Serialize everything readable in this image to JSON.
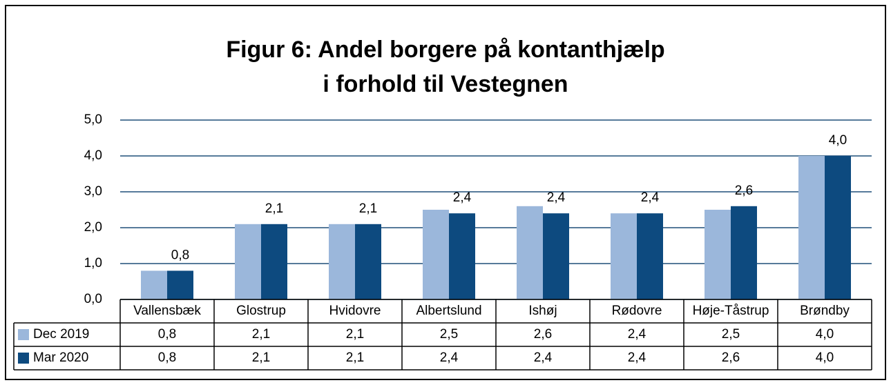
{
  "chart_data": {
    "type": "bar",
    "title": [
      "Figur 6: Andel borgere på kontanthjælp",
      "i forhold til Vestegnen"
    ],
    "categories": [
      "Vallensbæk",
      "Glostrup",
      "Hvidovre",
      "Albertslund",
      "Ishøj",
      "Rødovre",
      "Høje-Tåstrup",
      "Brøndby"
    ],
    "series": [
      {
        "name": "Dec 2019",
        "color": "#9bb7db",
        "values": [
          0.8,
          2.1,
          2.1,
          2.5,
          2.6,
          2.4,
          2.5,
          4.0
        ],
        "value_labels": [
          "0,8",
          "2,1",
          "2,1",
          "2,5",
          "2,6",
          "2,4",
          "2,5",
          "4,0"
        ]
      },
      {
        "name": "Mar 2020",
        "color": "#0d4a7f",
        "values": [
          0.8,
          2.1,
          2.1,
          2.4,
          2.4,
          2.4,
          2.6,
          4.0
        ],
        "value_labels": [
          "0,8",
          "2,1",
          "2,1",
          "2,4",
          "2,4",
          "2,4",
          "2,6",
          "4,0"
        ]
      }
    ],
    "ylim": [
      0,
      5
    ],
    "yticks": [
      {
        "value": 0,
        "label": "0,0"
      },
      {
        "value": 1,
        "label": "1,0"
      },
      {
        "value": 2,
        "label": "2,0"
      },
      {
        "value": 3,
        "label": "3,0"
      },
      {
        "value": 4,
        "label": "4,0"
      },
      {
        "value": 5,
        "label": "5,0"
      }
    ],
    "grid": true
  }
}
